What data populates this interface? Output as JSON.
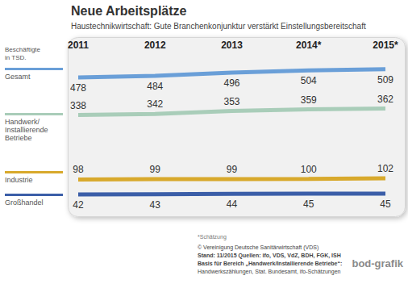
{
  "chart_data": {
    "type": "line",
    "title": "Neue Arbeitsplätze",
    "subtitle": "Haustechnikwirtschaft: Gute Branchenkonjunktur verstärkt Einstellungsbereitschaft",
    "legend_title": "Beschäftigte in TSD.",
    "categories": [
      "2011",
      "2012",
      "2013",
      "2014*",
      "2015*"
    ],
    "series": [
      {
        "name": "Gesamt",
        "color": "#6a9fd8",
        "values": [
          478,
          484,
          496,
          504,
          509
        ]
      },
      {
        "name": "Handwerk/Installierende Betriebe",
        "color": "#a9cdb9",
        "values": [
          338,
          342,
          353,
          359,
          362
        ]
      },
      {
        "name": "Industrie",
        "color": "#d8a92c",
        "values": [
          98,
          99,
          99,
          100,
          102
        ]
      },
      {
        "name": "Großhandel",
        "color": "#3b5ea8",
        "values": [
          42,
          43,
          44,
          45,
          45
        ]
      }
    ],
    "ylim": [
      0,
      550
    ],
    "yticks": [
      0,
      110,
      220,
      330,
      440,
      550
    ],
    "grid": false,
    "tick_labels": "x",
    "data_labels": true,
    "legend": "left",
    "notes": [
      "*Schätzung",
      "© Vereinigung Deutsche Sanitärwirtschaft (VDS)",
      "Stand: 11/2015 Quellen: ifo, VDS, VdZ, BDH, FGK, ISH",
      "Basis für Bereich „Handwerk/Installierende Betriebe“:",
      "Handwerkszählungen, Stat. Bundesamt, ifo-Schätzungen"
    ],
    "logo": "bod-grafik"
  }
}
